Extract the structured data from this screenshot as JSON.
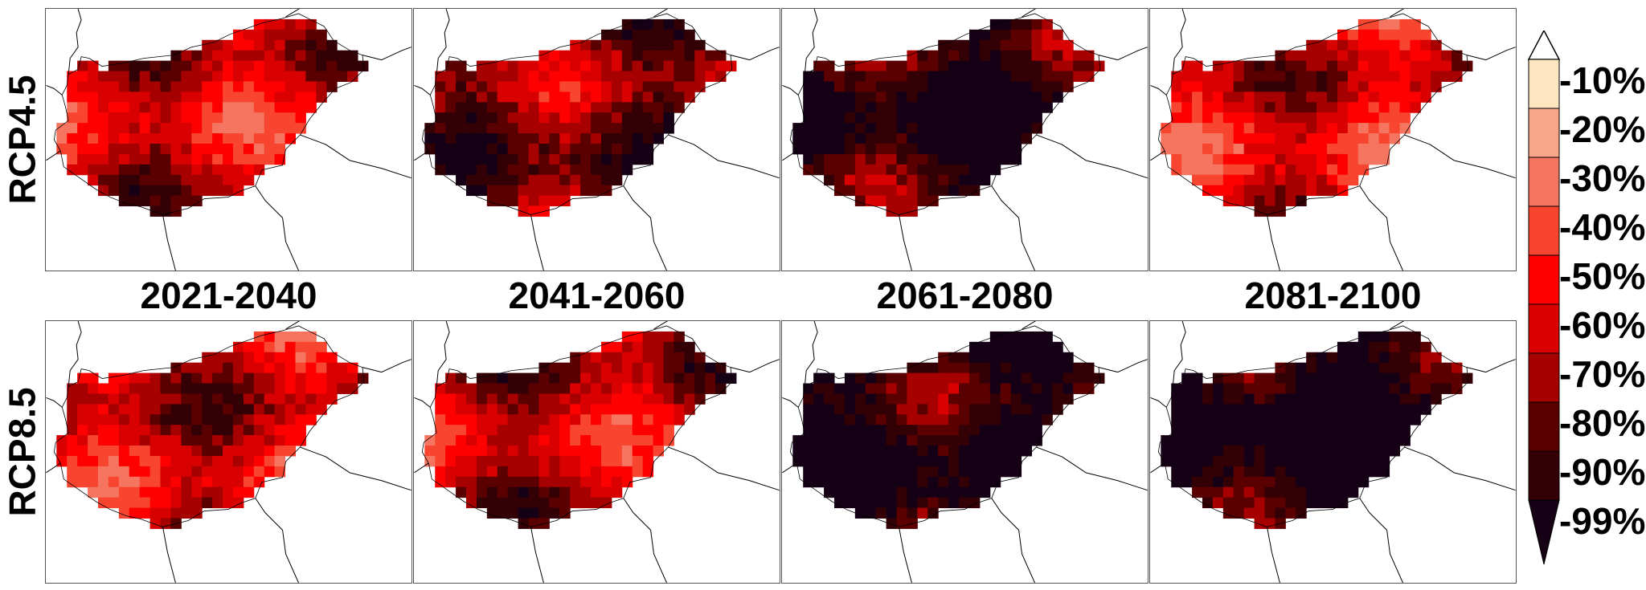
{
  "rows": [
    {
      "label": "RCP4.5",
      "level": [
        0.55,
        0.35,
        0.15,
        0.6
      ]
    },
    {
      "label": "RCP8.5",
      "level": [
        0.55,
        0.5,
        0.1,
        0.04
      ]
    }
  ],
  "periods": [
    "2021-2040",
    "2041-2060",
    "2061-2080",
    "2081-2100"
  ],
  "legend": {
    "ticks": [
      "-10%",
      "-20%",
      "-30%",
      "-40%",
      "-50%",
      "-60%",
      "-70%",
      "-80%",
      "-90%",
      "-99%"
    ],
    "colors": [
      "#ffffff",
      "#fde5c0",
      "#f8a589",
      "#f57560",
      "#f84530",
      "#ff0000",
      "#d80000",
      "#a60000",
      "#5a0000",
      "#330006",
      "#150015"
    ]
  },
  "map_colors": {
    "outline": "#000000",
    "background": "#ffffff"
  }
}
